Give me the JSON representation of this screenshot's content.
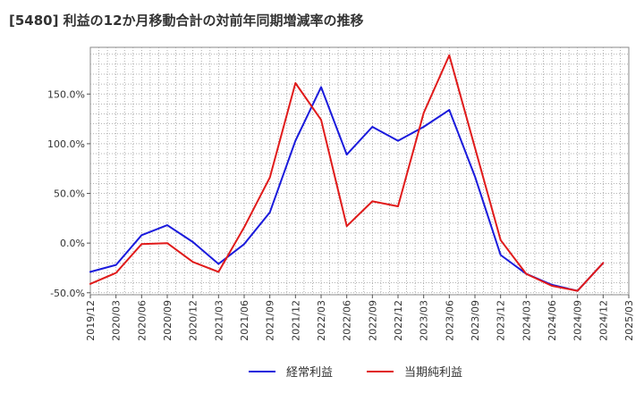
{
  "chart_data": {
    "type": "line",
    "title": "[5480]  利益の12か月移動合計の対前年同期増減率の推移",
    "xlabel": "",
    "ylabel": "",
    "ylim": [
      -52,
      197
    ],
    "y_ticks": [
      -50,
      0,
      50,
      100,
      150
    ],
    "y_tick_labels": [
      "-50.0%",
      "0.0%",
      "50.0%",
      "100.0%",
      "150.0%"
    ],
    "x_tick_labels": [
      "2019/12",
      "2020/03",
      "2020/06",
      "2020/09",
      "2020/12",
      "2021/03",
      "2021/06",
      "2021/09",
      "2021/12",
      "2022/03",
      "2022/06",
      "2022/09",
      "2022/12",
      "2023/03",
      "2023/06",
      "2023/09",
      "2023/12",
      "2024/03",
      "2024/06",
      "2024/09",
      "2024/12",
      "2025/03"
    ],
    "x": [
      "2019/12",
      "2020/03",
      "2020/06",
      "2020/09",
      "2020/12",
      "2021/03",
      "2021/06",
      "2021/09",
      "2021/12",
      "2022/03",
      "2022/06",
      "2022/09",
      "2022/12",
      "2023/03",
      "2023/06",
      "2023/09",
      "2023/12",
      "2024/03",
      "2024/06",
      "2024/09",
      "2024/12"
    ],
    "series": [
      {
        "name": "経常利益",
        "color": "#1a1adc",
        "values": [
          -29,
          -22,
          8,
          18,
          1,
          -21,
          -1,
          31,
          103,
          157,
          89,
          117,
          103,
          117,
          134,
          67,
          -12,
          -31,
          -42,
          -48,
          -20
        ]
      },
      {
        "name": "当期純利益",
        "color": "#e01a1a",
        "values": [
          -41,
          -30,
          -1,
          0,
          -19,
          -29,
          16,
          66,
          161,
          124,
          17,
          42,
          37,
          131,
          189,
          96,
          3,
          -31,
          -43,
          -48,
          -20
        ]
      }
    ],
    "grid": true,
    "legend_position": "bottom-center"
  }
}
